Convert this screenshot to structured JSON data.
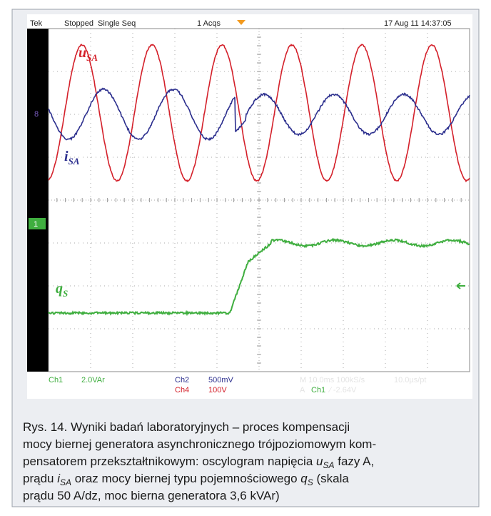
{
  "header": {
    "brand": "Tek",
    "state": "Stopped",
    "mode": "Single Seq",
    "acqs": "1 Acqs",
    "datetime": "17 Aug 11 14:37:05"
  },
  "traces": {
    "u_symbol": "u",
    "u_sub": "SA",
    "i_symbol": "i",
    "i_sub": "SA",
    "q_symbol": "q",
    "q_sub": "S",
    "ch_marker": "1",
    "ref_marker": "8"
  },
  "status": {
    "ch1": "Ch1",
    "ch1_scale": "2.0VAr",
    "ch2": "Ch2",
    "ch2_scale": "500mV",
    "ch4": "Ch4",
    "ch4_scale": "100V",
    "timebase": "M 10.0ms 100kS/s",
    "resolution": "10.0µs/pt",
    "trig": "A",
    "trig_ch": "Ch1",
    "trig_level": "∕ -2.64V"
  },
  "caption": {
    "lines": [
      [
        "Rys. 14. Wyniki badań laboratoryjnych – proces kompensacji"
      ],
      [
        "mocy biernej generatora asynchronicznego trójpoziomowym kom-"
      ],
      [
        "pensatorem przekształtnikowym: oscylogram napięcia ",
        "u",
        "SA",
        " fazy A,"
      ],
      [
        "prądu ",
        "i",
        "SA",
        " oraz mocy biernej typu pojemnościowego ",
        "q",
        "S",
        " (skala"
      ],
      [
        "prądu 50 A/dz, moc bierna generatora 3,6 kVAr)"
      ]
    ]
  }
}
